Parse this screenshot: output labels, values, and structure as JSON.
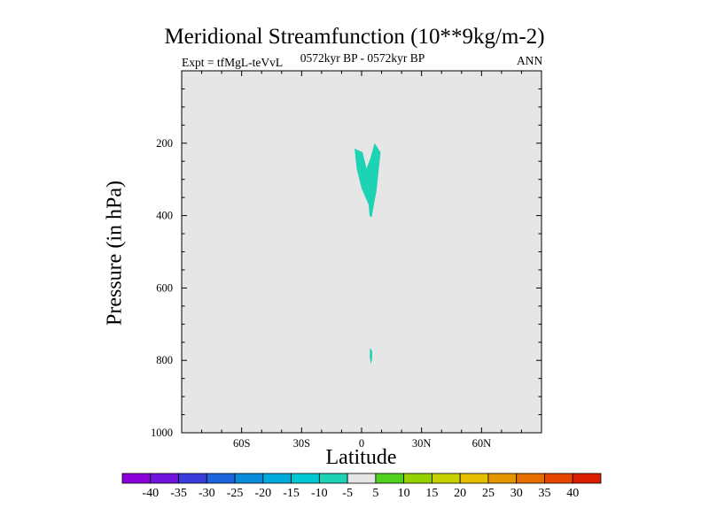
{
  "header": {
    "title": "Meridional Streamfunction (10**9kg/m-2)",
    "subtitle_left": "Expt = tfMgL-teVvL",
    "subtitle_center": "0572kyr BP - 0572kyr BP",
    "subtitle_right": "ANN"
  },
  "chart_data": {
    "type": "heatmap",
    "title": "Meridional Streamfunction (10**9kg/m-2)",
    "xlabel": "Latitude",
    "ylabel": "Pressure (in hPa)",
    "xlim": [
      -90,
      90
    ],
    "ylim": [
      1000,
      0
    ],
    "y_reversed": true,
    "x_ticks": [
      {
        "value": -60,
        "label": "60S"
      },
      {
        "value": -30,
        "label": "30S"
      },
      {
        "value": 0,
        "label": "0"
      },
      {
        "value": 30,
        "label": "30N"
      },
      {
        "value": 60,
        "label": "60N"
      }
    ],
    "y_ticks": [
      {
        "value": 200,
        "label": "200"
      },
      {
        "value": 400,
        "label": "400"
      },
      {
        "value": 600,
        "label": "600"
      },
      {
        "value": 800,
        "label": "800"
      },
      {
        "value": 1000,
        "label": "1000"
      }
    ],
    "background_color": "#e6e6e6",
    "background_level": "-5 to 5",
    "contour_regions": [
      {
        "level": "-10 to -5",
        "color": "#1ed2b4",
        "points": [
          [
            -3.5,
            215
          ],
          [
            0.5,
            225
          ],
          [
            2.5,
            270
          ],
          [
            4.5,
            240
          ],
          [
            6.5,
            200
          ],
          [
            9.5,
            225
          ],
          [
            7.5,
            330
          ],
          [
            5,
            405
          ],
          [
            4,
            400
          ],
          [
            3.5,
            370
          ],
          [
            0,
            325
          ],
          [
            -2.5,
            270
          ]
        ]
      },
      {
        "level": "-10 to -5",
        "color": "#1ed2b4",
        "points": [
          [
            4.2,
            765
          ],
          [
            5.3,
            775
          ],
          [
            5.2,
            800
          ],
          [
            4.6,
            810
          ],
          [
            4.1,
            790
          ]
        ]
      }
    ],
    "colorbar": {
      "levels": [
        "-40",
        "-35",
        "-30",
        "-25",
        "-20",
        "-15",
        "-10",
        "-5",
        "5",
        "10",
        "15",
        "20",
        "25",
        "30",
        "35",
        "40"
      ],
      "colors": [
        "#8c00dc",
        "#6e14dc",
        "#3c3cdc",
        "#1e64dc",
        "#0a8cdc",
        "#00aadc",
        "#00c8d2",
        "#1ed2b4",
        "#e6e6e6",
        "#50d21e",
        "#96d200",
        "#c8d200",
        "#e6be00",
        "#e69600",
        "#e66e00",
        "#e64600",
        "#dc1e00"
      ]
    }
  }
}
